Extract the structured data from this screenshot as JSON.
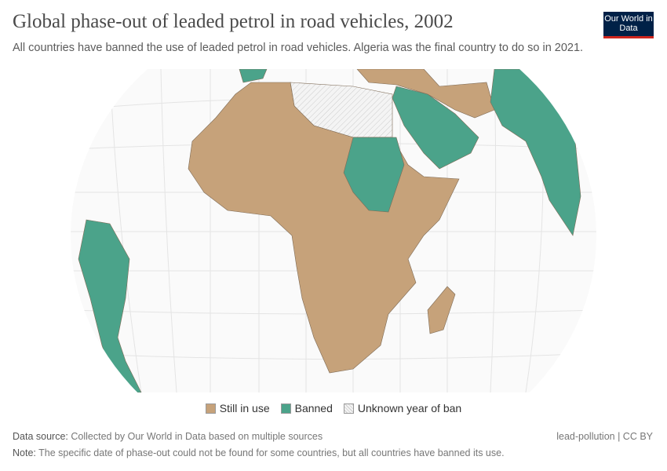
{
  "header": {
    "title": "Global phase-out of leaded petrol in road vehicles, 2002",
    "subtitle": "All countries have banned the use of leaded petrol in road vehicles. Algeria was the final country to do so in 2021.",
    "logo_text": "Our World in Data"
  },
  "legend": [
    {
      "label": "Still in use",
      "color": "#c6a27a"
    },
    {
      "label": "Banned",
      "color": "#4ba38a"
    },
    {
      "label": "Unknown year of ban",
      "color": "#f2f2f2"
    }
  ],
  "footer": {
    "source_label": "Data source:",
    "source_text": "Collected by Our World in Data based on multiple sources",
    "note_label": "Note:",
    "note_text": "The specific date of phase-out could not be found for some countries, but all countries have banned its use.",
    "license": "lead-pollution | CC BY"
  }
}
